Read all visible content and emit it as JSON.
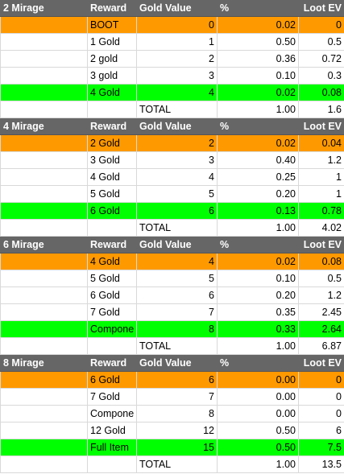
{
  "colors": {
    "header_bg": "#666666",
    "header_text": "#ffffff",
    "orange": "#ff9900",
    "green": "#00ff00",
    "grid": "#d9d9d9"
  },
  "headers": {
    "reward": "Reward",
    "gold_value": "Gold Value",
    "percent": "%",
    "loot_ev": "Loot EV"
  },
  "sections": [
    {
      "name": "2 Mirage",
      "rows": [
        {
          "reward": "BOOT",
          "gold": "0",
          "pct": "0.02",
          "ev": "0",
          "color": "orange"
        },
        {
          "reward": "1 Gold",
          "gold": "1",
          "pct": "0.50",
          "ev": "0.5",
          "color": ""
        },
        {
          "reward": "2 gold",
          "gold": "2",
          "pct": "0.36",
          "ev": "0.72",
          "color": ""
        },
        {
          "reward": "3 gold",
          "gold": "3",
          "pct": "0.10",
          "ev": "0.3",
          "color": ""
        },
        {
          "reward": "4 Gold",
          "gold": "4",
          "pct": "0.02",
          "ev": "0.08",
          "color": "green"
        }
      ],
      "total": {
        "label": "TOTAL",
        "pct": "1.00",
        "ev": "1.6"
      }
    },
    {
      "name": "4 Mirage",
      "rows": [
        {
          "reward": "2 Gold",
          "gold": "2",
          "pct": "0.02",
          "ev": "0.04",
          "color": "orange"
        },
        {
          "reward": "3 Gold",
          "gold": "3",
          "pct": "0.40",
          "ev": "1.2",
          "color": ""
        },
        {
          "reward": "4 Gold",
          "gold": "4",
          "pct": "0.25",
          "ev": "1",
          "color": ""
        },
        {
          "reward": "5 Gold",
          "gold": "5",
          "pct": "0.20",
          "ev": "1",
          "color": ""
        },
        {
          "reward": "6 Gold",
          "gold": "6",
          "pct": "0.13",
          "ev": "0.78",
          "color": "green"
        }
      ],
      "total": {
        "label": "TOTAL",
        "pct": "1.00",
        "ev": "4.02"
      }
    },
    {
      "name": "6 Mirage",
      "rows": [
        {
          "reward": "4 Gold",
          "gold": "4",
          "pct": "0.02",
          "ev": "0.08",
          "color": "orange"
        },
        {
          "reward": "5 Gold",
          "gold": "5",
          "pct": "0.10",
          "ev": "0.5",
          "color": ""
        },
        {
          "reward": "6 Gold",
          "gold": "6",
          "pct": "0.20",
          "ev": "1.2",
          "color": ""
        },
        {
          "reward": "7 Gold",
          "gold": "7",
          "pct": "0.35",
          "ev": "2.45",
          "color": ""
        },
        {
          "reward": "Compone",
          "gold": "8",
          "pct": "0.33",
          "ev": "2.64",
          "color": "green"
        }
      ],
      "total": {
        "label": "TOTAL",
        "pct": "1.00",
        "ev": "6.87"
      }
    },
    {
      "name": "8 Mirage",
      "rows": [
        {
          "reward": "6 Gold",
          "gold": "6",
          "pct": "0.00",
          "ev": "0",
          "color": "orange"
        },
        {
          "reward": "7 Gold",
          "gold": "7",
          "pct": "0.00",
          "ev": "0",
          "color": ""
        },
        {
          "reward": "Compone",
          "gold": "8",
          "pct": "0.00",
          "ev": "0",
          "color": ""
        },
        {
          "reward": "12 Gold",
          "gold": "12",
          "pct": "0.50",
          "ev": "6",
          "color": ""
        },
        {
          "reward": "Full Item",
          "gold": "15",
          "pct": "0.50",
          "ev": "7.5",
          "color": "green"
        }
      ],
      "total": {
        "label": "TOTAL",
        "pct": "1.00",
        "ev": "13.5"
      }
    }
  ]
}
